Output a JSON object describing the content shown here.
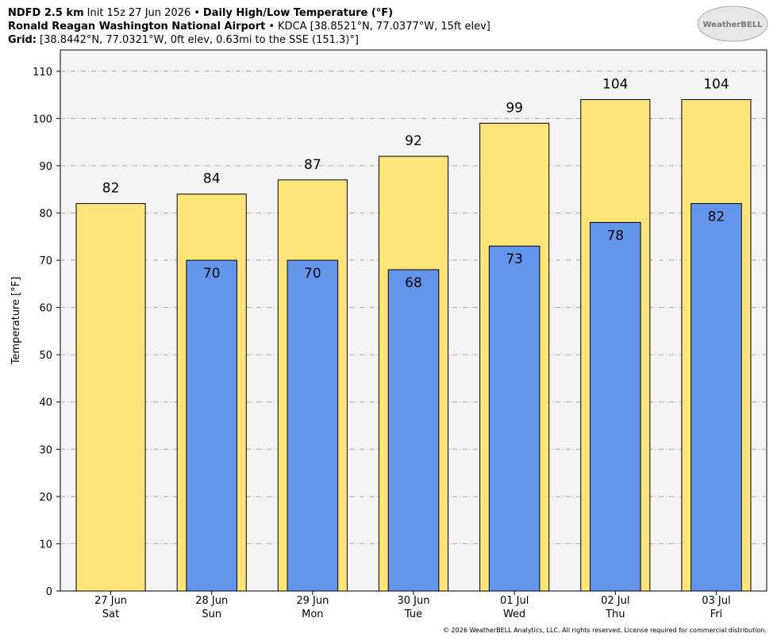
{
  "chart_data": {
    "type": "bar",
    "header_lines": [
      [
        {
          "text": "NDFD 2.5 km",
          "bold": true
        },
        {
          "text": "Init 15z 27 Jun 2026",
          "bold": false
        },
        {
          "text": "•",
          "bold": false
        },
        {
          "text": "Daily High/Low Temperature (°F)",
          "bold": true
        }
      ],
      [
        {
          "text": "Ronald Reagan Washington National Airport",
          "bold": true
        },
        {
          "text": "•",
          "bold": false
        },
        {
          "text": "KDCA [38.8521°N, 77.0377°W, 15ft elev]",
          "bold": false
        }
      ],
      [
        {
          "text": "Grid:",
          "bold": true
        },
        {
          "text": "[38.8442°N, 77.0321°W, 0ft elev, 0.63mi to the SSE (151.3)°]",
          "bold": false
        }
      ]
    ],
    "logo_text": "WeatherBELL",
    "y_label": "Temperature [°F]",
    "categories": [
      "27 Jun",
      "28 Jun",
      "29 Jun",
      "30 Jun",
      "01 Jul",
      "02 Jul",
      "03 Jul"
    ],
    "category_days": [
      "Sat",
      "Sun",
      "Mon",
      "Tue",
      "Wed",
      "Thu",
      "Fri"
    ],
    "series": [
      {
        "color": "#ffe47a",
        "values": [
          82,
          84,
          87,
          92,
          99,
          104,
          104
        ]
      },
      {
        "color": "#6495ed",
        "values": [
          null,
          70,
          70,
          68,
          73,
          78,
          82
        ]
      }
    ],
    "ylim": [
      0,
      114.5
    ],
    "yticks": [
      0,
      10,
      20,
      30,
      40,
      50,
      60,
      70,
      80,
      90,
      100,
      110
    ],
    "grid": true,
    "footer": "© 2026 WeatherBELL Analytics, LLC. All rights reserved. License required for commercial distribution."
  }
}
